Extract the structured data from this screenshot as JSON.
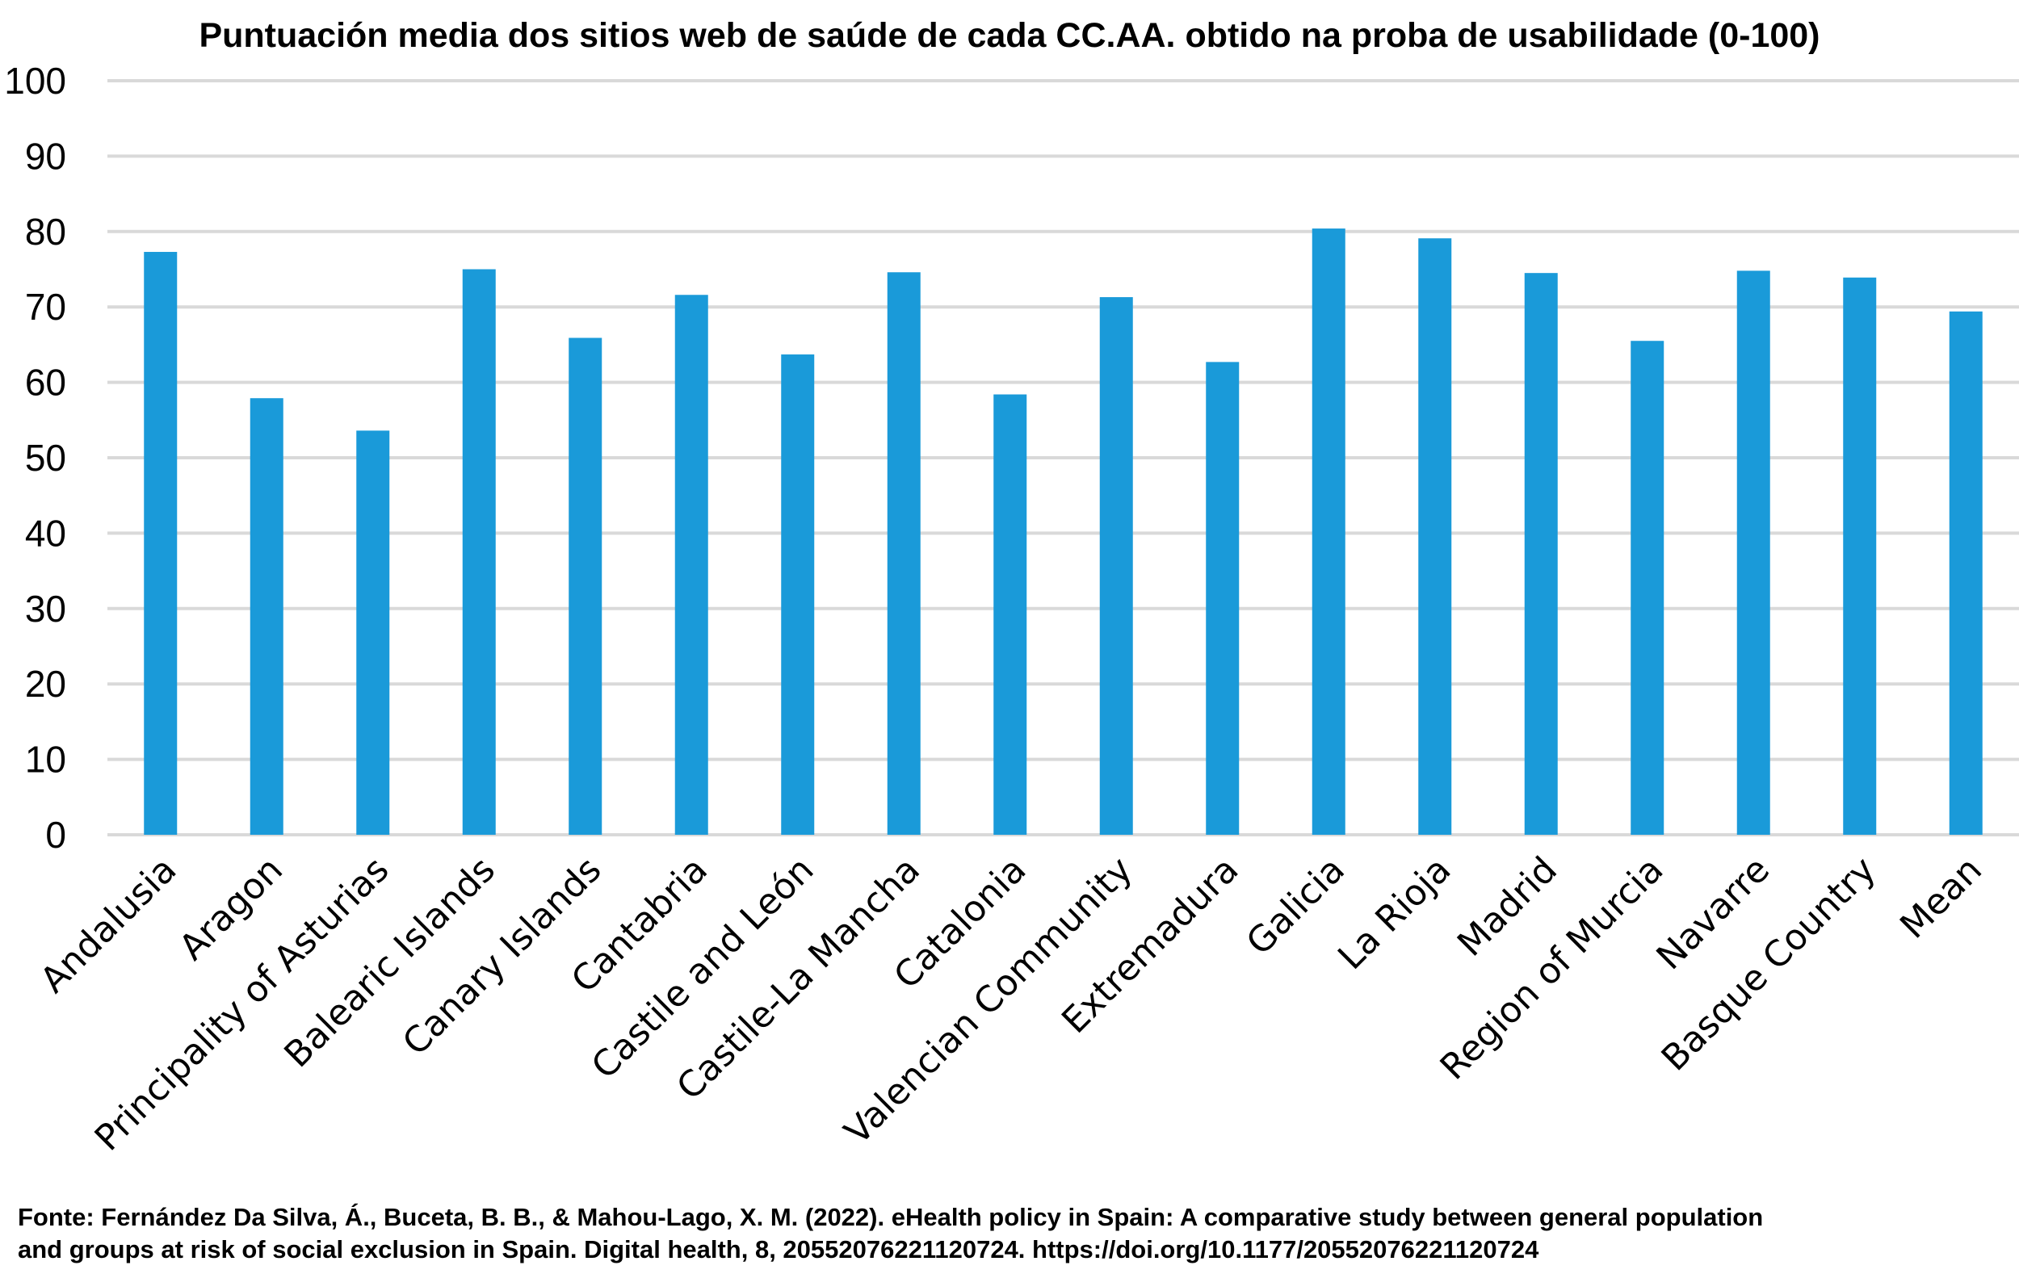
{
  "chart_data": {
    "type": "bar",
    "title": "Puntuación media dos sitios web de saúde de cada CC.AA. obtido na proba de usabilidade (0-100)",
    "xlabel": "",
    "ylabel": "",
    "ylim": [
      0,
      100
    ],
    "yticks": [
      "0",
      "10",
      "20",
      "30",
      "40",
      "50",
      "60",
      "70",
      "80",
      "90",
      "100"
    ],
    "grid": true,
    "bar_color": "#1a9ad9",
    "grid_color": "#d9d9d9",
    "categories": [
      "Andalusia",
      "Aragon",
      "Principality of Asturias",
      "Balearic Islands",
      "Canary Islands",
      "Cantabria",
      "Castile and León",
      "Castile-La Mancha",
      "Catalonia",
      "Valencian Community",
      "Extremadura",
      "Galicia",
      "La Rioja",
      "Madrid",
      "Region of Murcia",
      "Navarre",
      "Basque Country",
      "Mean"
    ],
    "values": [
      77.3,
      57.9,
      53.6,
      75.0,
      65.9,
      71.6,
      63.7,
      74.6,
      58.4,
      71.3,
      62.7,
      80.4,
      79.1,
      74.5,
      65.5,
      74.8,
      73.9,
      69.4
    ]
  },
  "source": {
    "line1": "Fonte: Fernández Da Silva, Á., Buceta, B. B., & Mahou-Lago, X. M. (2022). eHealth policy in Spain: A comparative study between general population",
    "line2": "and groups at risk of social exclusion in Spain. Digital health, 8, 20552076221120724. https://doi.org/10.1177/20552076221120724"
  }
}
